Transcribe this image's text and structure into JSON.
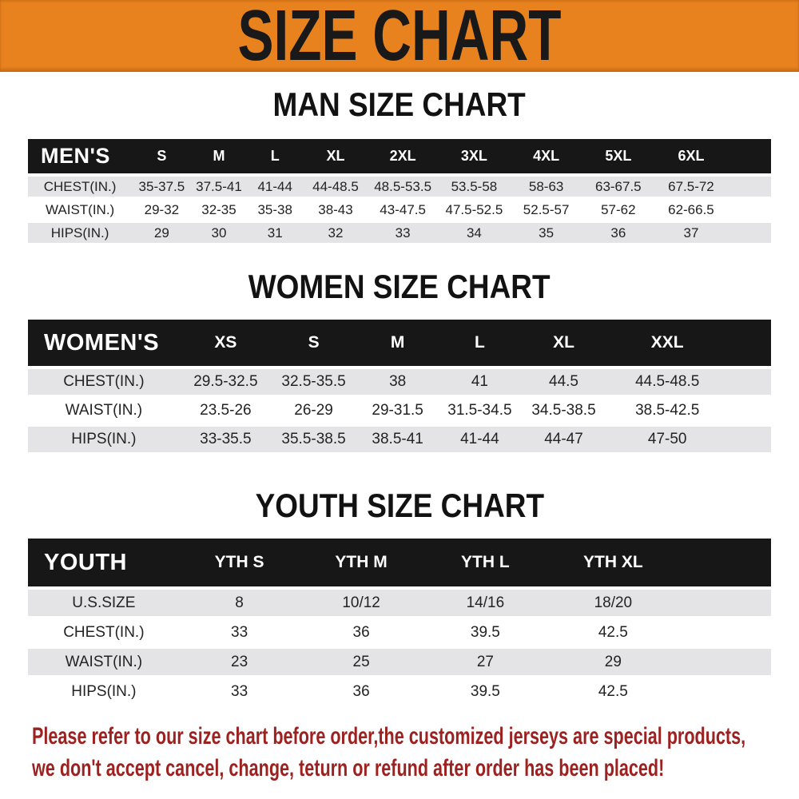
{
  "banner": {
    "title": "SIZE CHART",
    "bg_color": "#e8821e"
  },
  "sections": [
    {
      "id": "men",
      "title": "MAN SIZE CHART",
      "corner": "MEN'S",
      "columns": [
        "S",
        "M",
        "L",
        "XL",
        "2XL",
        "3XL",
        "4XL",
        "5XL",
        "6XL"
      ],
      "rows": [
        {
          "label": "CHEST(IN.)",
          "values": [
            "35-37.5",
            "37.5-41",
            "41-44",
            "44-48.5",
            "48.5-53.5",
            "53.5-58",
            "58-63",
            "63-67.5",
            "67.5-72"
          ]
        },
        {
          "label": "WAIST(IN.)",
          "values": [
            "29-32",
            "32-35",
            "35-38",
            "38-43",
            "43-47.5",
            "47.5-52.5",
            "52.5-57",
            "57-62",
            "62-66.5"
          ]
        },
        {
          "label": "HIPS(IN.)",
          "values": [
            "29",
            "30",
            "31",
            "32",
            "33",
            "34",
            "35",
            "36",
            "37"
          ]
        }
      ]
    },
    {
      "id": "women",
      "title": "WOMEN SIZE CHART",
      "corner": "WOMEN'S",
      "columns": [
        "XS",
        "S",
        "M",
        "L",
        "XL",
        "XXL"
      ],
      "rows": [
        {
          "label": "CHEST(IN.)",
          "values": [
            "29.5-32.5",
            "32.5-35.5",
            "38",
            "41",
            "44.5",
            "44.5-48.5"
          ]
        },
        {
          "label": "WAIST(IN.)",
          "values": [
            "23.5-26",
            "26-29",
            "29-31.5",
            "31.5-34.5",
            "34.5-38.5",
            "38.5-42.5"
          ]
        },
        {
          "label": "HIPS(IN.)",
          "values": [
            "33-35.5",
            "35.5-38.5",
            "38.5-41",
            "41-44",
            "44-47",
            "47-50"
          ]
        }
      ]
    },
    {
      "id": "youth",
      "title": "YOUTH SIZE CHART",
      "corner": "YOUTH",
      "columns": [
        "YTH S",
        "YTH M",
        "YTH L",
        "YTH XL"
      ],
      "rows": [
        {
          "label": "U.S.SIZE",
          "values": [
            "8",
            "10/12",
            "14/16",
            "18/20"
          ]
        },
        {
          "label": "CHEST(IN.)",
          "values": [
            "33",
            "36",
            "39.5",
            "42.5"
          ]
        },
        {
          "label": "WAIST(IN.)",
          "values": [
            "23",
            "25",
            "27",
            "29"
          ]
        },
        {
          "label": "HIPS(IN.)",
          "values": [
            "33",
            "36",
            "39.5",
            "42.5"
          ]
        }
      ]
    }
  ],
  "footer": {
    "line1": "Please refer to our size chart before order,the customized jerseys are special products,",
    "line2": "we don't accept cancel, change, teturn or refund after order has been placed!",
    "text_color": "#9b2220"
  },
  "colors": {
    "banner_orange": "#e8821e",
    "header_bar_black": "#171717",
    "row_shade_gray": "#e4e4e6"
  }
}
